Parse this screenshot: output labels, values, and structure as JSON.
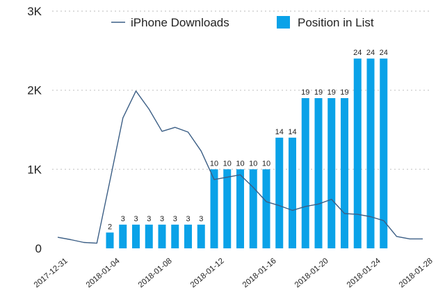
{
  "chart_data": {
    "type": "bar",
    "xlabel": "",
    "ylabel": "",
    "ylim": [
      0,
      3000
    ],
    "y_ticks": [
      0,
      1000,
      2000,
      3000
    ],
    "y_tick_labels": [
      "0",
      "1K",
      "2K",
      "3K"
    ],
    "x_tick_labels": [
      "2017-12-31",
      "2018-01-04",
      "2018-01-08",
      "2018-01-12",
      "2018-01-16",
      "2018-01-20",
      "2018-01-24",
      "2018-01-28"
    ],
    "grid": true,
    "legend_position": "top",
    "series": [
      {
        "name": "iPhone Downloads",
        "kind": "line",
        "color": "#3b5e85",
        "x": [
          "2017-12-30",
          "2017-12-31",
          "2018-01-01",
          "2018-01-02",
          "2018-01-03",
          "2018-01-04",
          "2018-01-05",
          "2018-01-06",
          "2018-01-07",
          "2018-01-08",
          "2018-01-09",
          "2018-01-10",
          "2018-01-11",
          "2018-01-12",
          "2018-01-13",
          "2018-01-14",
          "2018-01-15",
          "2018-01-16",
          "2018-01-17",
          "2018-01-18",
          "2018-01-19",
          "2018-01-20",
          "2018-01-21",
          "2018-01-22",
          "2018-01-23",
          "2018-01-24",
          "2018-01-25",
          "2018-01-26",
          "2018-01-27"
        ],
        "values": [
          140,
          110,
          75,
          65,
          850,
          1650,
          1990,
          1760,
          1480,
          1530,
          1470,
          1230,
          870,
          900,
          930,
          770,
          590,
          540,
          480,
          530,
          560,
          620,
          440,
          430,
          400,
          350,
          150,
          120,
          120
        ]
      },
      {
        "name": "Position in List",
        "kind": "bar",
        "color": "#0aa2e8",
        "x": [
          "2018-01-03",
          "2018-01-04",
          "2018-01-05",
          "2018-01-06",
          "2018-01-07",
          "2018-01-08",
          "2018-01-09",
          "2018-01-10",
          "2018-01-11",
          "2018-01-12",
          "2018-01-13",
          "2018-01-14",
          "2018-01-15",
          "2018-01-16",
          "2018-01-17",
          "2018-01-18",
          "2018-01-19",
          "2018-01-20",
          "2018-01-21",
          "2018-01-22",
          "2018-01-23",
          "2018-01-24"
        ],
        "values": [
          2,
          3,
          3,
          3,
          3,
          3,
          3,
          3,
          10,
          10,
          10,
          10,
          10,
          14,
          14,
          19,
          19,
          19,
          19,
          24,
          24,
          24
        ]
      }
    ]
  }
}
